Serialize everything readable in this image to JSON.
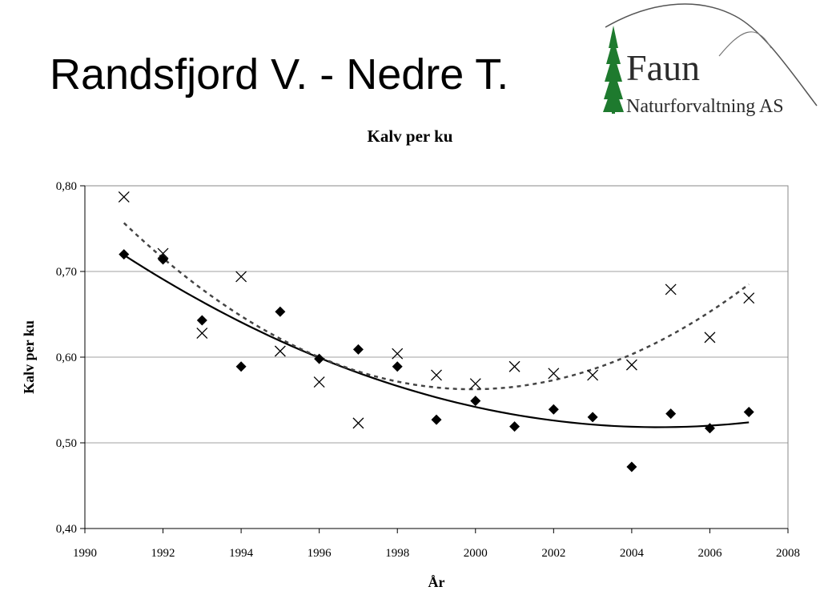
{
  "slide": {
    "title": "Randsfjord V. - Nedre T."
  },
  "logo": {
    "name": "Faun",
    "subtitle": "Naturforvaltning AS",
    "tree_color": "#1e7a2e",
    "text_color": "#2b2b2b"
  },
  "chart_data": {
    "type": "scatter",
    "title": "Kalv per ku",
    "xlabel": "År",
    "ylabel": "Kalv per ku",
    "xlim": [
      1990,
      2008
    ],
    "ylim": [
      0.4,
      0.8
    ],
    "xticks": [
      1990,
      1992,
      1994,
      1996,
      1998,
      2000,
      2002,
      2004,
      2006,
      2008
    ],
    "yticks": [
      0.4,
      0.5,
      0.6,
      0.7,
      0.8
    ],
    "ytick_labels": [
      "0,40",
      "0,50",
      "0,60",
      "0,70",
      "0,80"
    ],
    "grid": "horizontal",
    "series": [
      {
        "marker": "diamond",
        "color": "#000000",
        "x": [
          1991,
          1992,
          1993,
          1994,
          1995,
          1996,
          1997,
          1998,
          1999,
          2000,
          2001,
          2002,
          2003,
          2004,
          2005,
          2006,
          2007
        ],
        "y": [
          0.72,
          0.714,
          0.643,
          0.589,
          0.653,
          0.598,
          0.609,
          0.589,
          0.527,
          0.549,
          0.519,
          0.539,
          0.53,
          0.472,
          0.534,
          0.517,
          0.536
        ],
        "trend": "solid"
      },
      {
        "marker": "cross",
        "color": "#000000",
        "x": [
          1991,
          1992,
          1993,
          1994,
          1995,
          1996,
          1997,
          1998,
          1999,
          2000,
          2001,
          2002,
          2003,
          2004,
          2005,
          2006,
          2007
        ],
        "y": [
          0.787,
          0.721,
          0.628,
          0.694,
          0.607,
          0.571,
          0.523,
          0.604,
          0.579,
          0.569,
          0.589,
          0.581,
          0.579,
          0.591,
          0.679,
          0.623,
          0.669
        ],
        "trend": "dotted"
      }
    ]
  }
}
